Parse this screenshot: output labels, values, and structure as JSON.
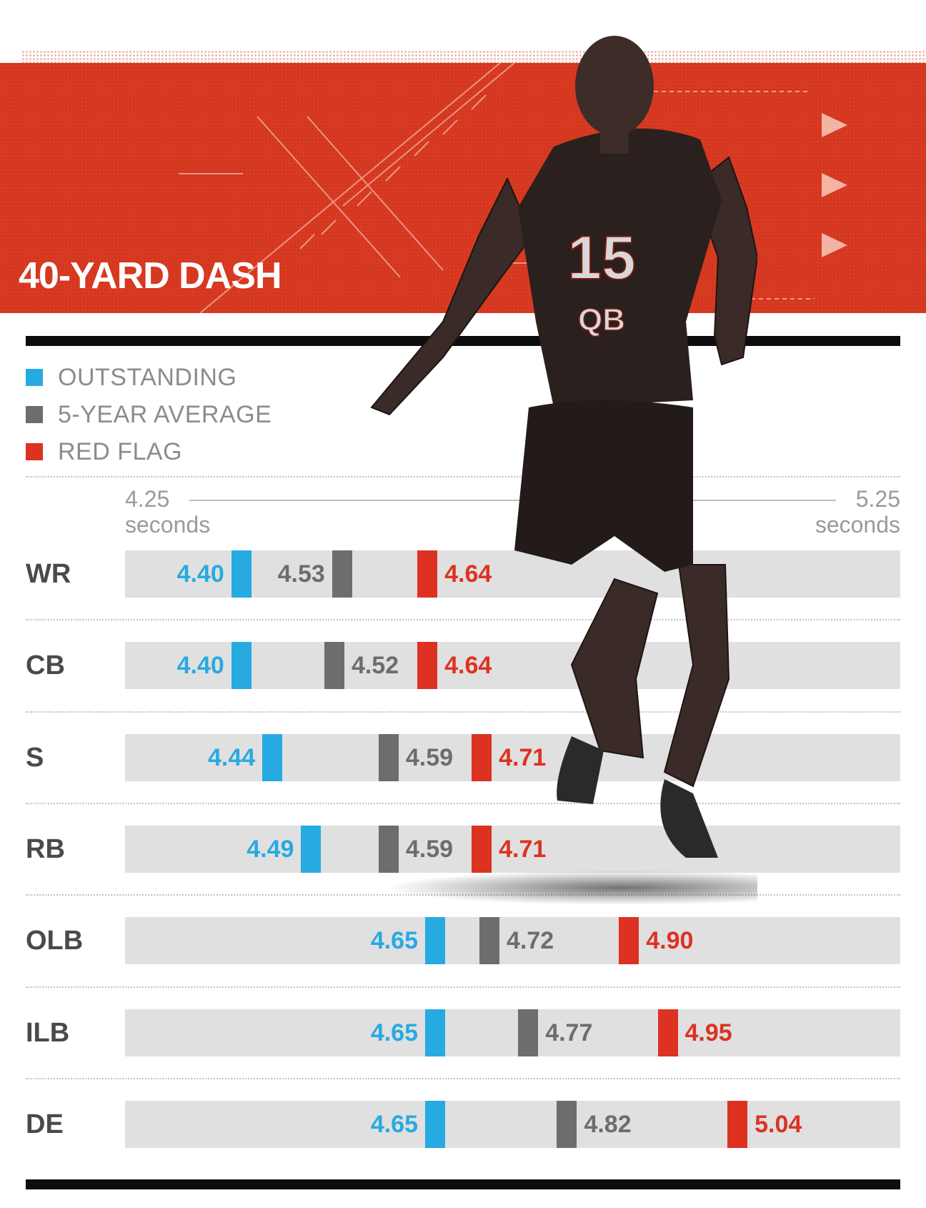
{
  "title": "40-YARD DASH",
  "colors": {
    "outstanding": "#27aae1",
    "average": "#6d6d6d",
    "red_flag": "#dd3222",
    "banner": "#d93a22"
  },
  "legend": [
    {
      "key": "outstanding",
      "label": "OUTSTANDING"
    },
    {
      "key": "average",
      "label": "5-YEAR AVERAGE"
    },
    {
      "key": "red_flag",
      "label": "RED FLAG"
    }
  ],
  "axis": {
    "min_value": "4.25",
    "min_unit": "seconds",
    "max_value": "5.25",
    "max_unit": "seconds"
  },
  "athlete": {
    "jersey_number": "15",
    "jersey_position": "QB"
  },
  "chart_data": {
    "type": "scatter",
    "title": "40-YARD DASH",
    "xlim": [
      4.25,
      5.25
    ],
    "x_unit": "seconds",
    "categories": [
      "WR",
      "CB",
      "S",
      "RB",
      "OLB",
      "ILB",
      "DE"
    ],
    "series": [
      {
        "name": "OUTSTANDING",
        "color": "#27aae1",
        "values": [
          4.4,
          4.4,
          4.44,
          4.49,
          4.65,
          4.65,
          4.65
        ]
      },
      {
        "name": "5-YEAR AVERAGE",
        "color": "#6d6d6d",
        "values": [
          4.53,
          4.52,
          4.59,
          4.59,
          4.72,
          4.77,
          4.82
        ]
      },
      {
        "name": "RED FLAG",
        "color": "#dd3222",
        "values": [
          4.64,
          4.64,
          4.71,
          4.71,
          4.9,
          4.95,
          5.04
        ]
      }
    ]
  }
}
